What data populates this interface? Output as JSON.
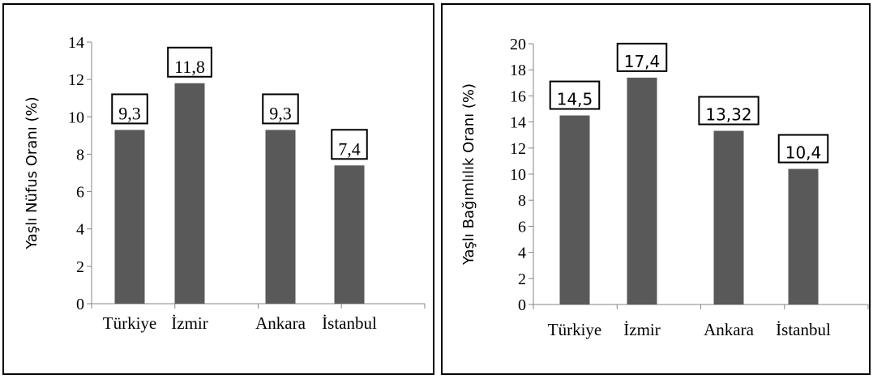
{
  "chart_data": [
    {
      "type": "bar",
      "title": "",
      "xlabel": "",
      "ylabel": "Yaşlı Nüfus Oranı (%)",
      "categories": [
        "Türkiye",
        "İzmir",
        "Ankara",
        "İstanbul"
      ],
      "values": [
        9.3,
        11.8,
        9.3,
        7.4
      ],
      "data_labels": [
        "9,3",
        "11,8",
        "9,3",
        "7,4"
      ],
      "ylim": [
        0,
        14
      ],
      "yticks": [
        "0",
        "2",
        "4",
        "6",
        "8",
        "10",
        "12",
        "14"
      ],
      "grid": false,
      "bar_color": "#595959"
    },
    {
      "type": "bar",
      "title": "",
      "xlabel": "",
      "ylabel": "Yaşlı Bağımlılık Oranı (%)",
      "categories": [
        "Türkiye",
        "İzmir",
        "Ankara",
        "İstanbul"
      ],
      "values": [
        14.5,
        17.4,
        13.32,
        10.4
      ],
      "data_labels": [
        "14,5",
        "17,4",
        "13,32",
        "10,4"
      ],
      "ylim": [
        0,
        20
      ],
      "yticks": [
        "0",
        "2",
        "4",
        "6",
        "8",
        "10",
        "12",
        "14",
        "16",
        "18",
        "20"
      ],
      "grid": false,
      "bar_color": "#595959"
    }
  ]
}
